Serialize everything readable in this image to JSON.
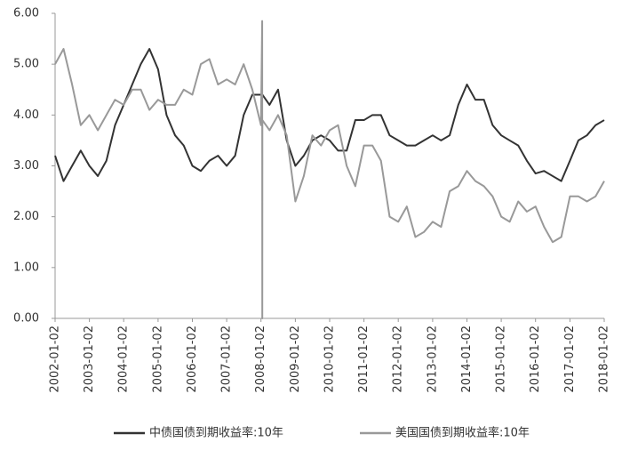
{
  "chart_data": {
    "type": "line",
    "x": [
      "2002-01-02",
      "2002-04-02",
      "2002-07-02",
      "2002-10-02",
      "2003-01-02",
      "2003-04-02",
      "2003-07-02",
      "2003-10-02",
      "2004-01-02",
      "2004-04-02",
      "2004-07-02",
      "2004-10-02",
      "2005-01-02",
      "2005-04-02",
      "2005-07-02",
      "2005-10-02",
      "2006-01-02",
      "2006-04-02",
      "2006-07-02",
      "2006-10-02",
      "2007-01-02",
      "2007-04-02",
      "2007-07-02",
      "2007-10-02",
      "2008-01-02",
      "2008-01-15",
      "2008-01-16",
      "2008-01-17",
      "2008-04-02",
      "2008-07-02",
      "2008-10-02",
      "2009-01-02",
      "2009-04-02",
      "2009-07-02",
      "2009-10-02",
      "2010-01-02",
      "2010-04-02",
      "2010-07-02",
      "2010-10-02",
      "2011-01-02",
      "2011-04-02",
      "2011-07-02",
      "2011-10-02",
      "2012-01-02",
      "2012-04-02",
      "2012-07-02",
      "2012-10-02",
      "2013-01-02",
      "2013-04-02",
      "2013-07-02",
      "2013-10-02",
      "2014-01-02",
      "2014-04-02",
      "2014-07-02",
      "2014-10-02",
      "2015-01-02",
      "2015-04-02",
      "2015-07-02",
      "2015-10-02",
      "2016-01-02",
      "2016-04-02",
      "2016-07-02",
      "2016-10-02",
      "2017-01-02",
      "2017-04-02",
      "2017-07-02",
      "2017-10-02",
      "2018-01-02"
    ],
    "series": [
      {
        "name": "中债国债到期收益率:10年",
        "color": "#333333",
        "values": [
          3.2,
          2.7,
          3.0,
          3.3,
          3.0,
          2.8,
          3.1,
          3.8,
          4.2,
          4.6,
          5.0,
          5.3,
          4.9,
          4.0,
          3.6,
          3.4,
          3.0,
          2.9,
          3.1,
          3.2,
          3.0,
          3.2,
          4.0,
          4.4,
          4.4,
          4.4,
          4.4,
          4.4,
          4.2,
          4.5,
          3.5,
          3.0,
          3.2,
          3.5,
          3.6,
          3.5,
          3.3,
          3.3,
          3.9,
          3.9,
          4.0,
          4.0,
          3.6,
          3.5,
          3.4,
          3.4,
          3.5,
          3.6,
          3.5,
          3.6,
          4.2,
          4.6,
          4.3,
          4.3,
          3.8,
          3.6,
          3.5,
          3.4,
          3.1,
          2.85,
          2.9,
          2.8,
          2.7,
          3.1,
          3.5,
          3.6,
          3.8,
          3.9
        ]
      },
      {
        "name": "美国国债到期收益率:10年",
        "color": "#999999",
        "values": [
          5.0,
          5.3,
          4.6,
          3.8,
          4.0,
          3.7,
          4.0,
          4.3,
          4.2,
          4.5,
          4.5,
          4.1,
          4.3,
          4.2,
          4.2,
          4.5,
          4.4,
          5.0,
          5.1,
          4.6,
          4.7,
          4.6,
          5.0,
          4.5,
          3.8,
          5.85,
          0,
          3.9,
          3.7,
          4.0,
          3.6,
          2.3,
          2.8,
          3.6,
          3.4,
          3.7,
          3.8,
          3.0,
          2.6,
          3.4,
          3.4,
          3.1,
          2.0,
          1.9,
          2.2,
          1.6,
          1.7,
          1.9,
          1.8,
          2.5,
          2.6,
          2.9,
          2.7,
          2.6,
          2.4,
          2.0,
          1.9,
          2.3,
          2.1,
          2.2,
          1.8,
          1.5,
          1.6,
          2.4,
          2.4,
          2.3,
          2.4,
          2.7
        ]
      }
    ],
    "xlim": [
      "2002-01-02",
      "2018-01-02"
    ],
    "xticks": [
      "2002-01-02",
      "2003-01-02",
      "2004-01-02",
      "2005-01-02",
      "2006-01-02",
      "2007-01-02",
      "2008-01-02",
      "2009-01-02",
      "2010-01-02",
      "2011-01-02",
      "2012-01-02",
      "2013-01-02",
      "2014-01-02",
      "2015-01-02",
      "2016-01-02",
      "2017-01-02",
      "2018-01-02"
    ],
    "ylim": [
      0,
      6
    ],
    "yticks": [
      {
        "value": 0,
        "label": "0.00"
      },
      {
        "value": 1,
        "label": "1.00"
      },
      {
        "value": 2,
        "label": "2.00"
      },
      {
        "value": 3,
        "label": "3.00"
      },
      {
        "value": 4,
        "label": "4.00"
      },
      {
        "value": 5,
        "label": "5.00"
      },
      {
        "value": 6,
        "label": "6.00"
      }
    ],
    "grid": false,
    "legend": "bottom"
  }
}
